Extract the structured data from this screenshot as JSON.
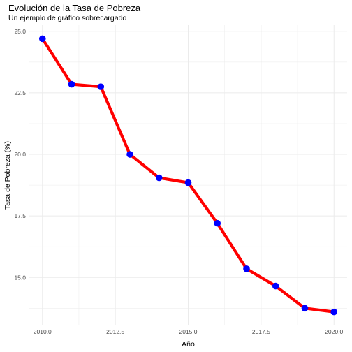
{
  "chart_data": {
    "type": "line",
    "title": "Evolución de la Tasa de Pobreza",
    "subtitle": "Un ejemplo de gráfico sobrecargado",
    "xlabel": "Año",
    "ylabel": "Tasa de Pobreza (%)",
    "x": [
      2010,
      2011,
      2012,
      2013,
      2014,
      2015,
      2016,
      2017,
      2018,
      2019,
      2020
    ],
    "y": [
      24.7,
      22.85,
      22.75,
      20.0,
      19.05,
      18.85,
      17.2,
      15.35,
      14.65,
      13.75,
      13.6
    ],
    "xlim": [
      2009.55,
      2020.45
    ],
    "ylim": [
      13.05,
      25.25
    ],
    "x_ticks": [
      2010.0,
      2012.5,
      2015.0,
      2017.5,
      2020.0
    ],
    "x_tick_labels": [
      "2010.0",
      "2012.5",
      "2015.0",
      "2017.5",
      "2020.0"
    ],
    "y_ticks": [
      15.0,
      17.5,
      20.0,
      22.5,
      25.0
    ],
    "y_tick_labels": [
      "15.0",
      "17.5",
      "20.0",
      "22.5",
      "25.0"
    ],
    "grid": true,
    "line_color": "#ff0000",
    "point_color": "#0000ff",
    "grid_color": "#ebebeb"
  }
}
